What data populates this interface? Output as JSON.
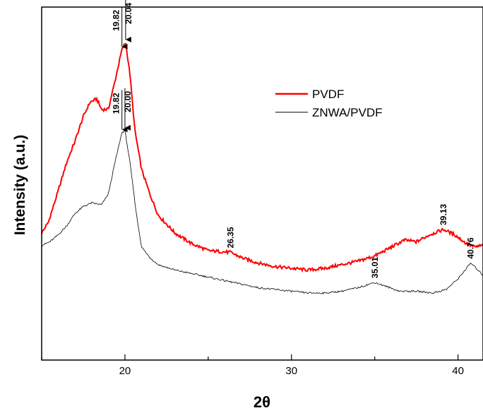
{
  "chart_data": {
    "type": "line",
    "xlabel": "2θ",
    "ylabel": "Intensity (a.u.)",
    "xlim": [
      15,
      41.5
    ],
    "ylim": [
      0,
      10
    ],
    "xticks": [
      20,
      30,
      40
    ],
    "yticks_shown": false,
    "grid": false,
    "legend_position": "top-right",
    "series": [
      {
        "name": "PVDF",
        "color": "#ff0000",
        "points": [
          [
            15.0,
            3.6
          ],
          [
            15.4,
            3.9
          ],
          [
            16.0,
            4.8
          ],
          [
            16.5,
            5.6
          ],
          [
            17.0,
            6.2
          ],
          [
            17.5,
            6.9
          ],
          [
            17.9,
            7.3
          ],
          [
            18.3,
            7.4
          ],
          [
            18.6,
            7.1
          ],
          [
            19.0,
            7.1
          ],
          [
            19.4,
            7.9
          ],
          [
            19.82,
            8.8
          ],
          [
            20.04,
            9.0
          ],
          [
            20.3,
            8.1
          ],
          [
            20.6,
            6.5
          ],
          [
            21.0,
            5.4
          ],
          [
            21.5,
            4.7
          ],
          [
            22.0,
            4.1
          ],
          [
            23.0,
            3.6
          ],
          [
            24.0,
            3.3
          ],
          [
            25.0,
            3.1
          ],
          [
            26.35,
            3.05
          ],
          [
            27.0,
            2.9
          ],
          [
            28.0,
            2.75
          ],
          [
            29.0,
            2.65
          ],
          [
            30.0,
            2.6
          ],
          [
            31.0,
            2.55
          ],
          [
            32.0,
            2.6
          ],
          [
            33.0,
            2.7
          ],
          [
            34.0,
            2.8
          ],
          [
            35.0,
            2.95
          ],
          [
            36.0,
            3.2
          ],
          [
            36.8,
            3.4
          ],
          [
            37.5,
            3.35
          ],
          [
            38.3,
            3.55
          ],
          [
            39.13,
            3.7
          ],
          [
            39.8,
            3.55
          ],
          [
            40.5,
            3.3
          ],
          [
            41.0,
            3.2
          ],
          [
            41.5,
            3.25
          ]
        ]
      },
      {
        "name": "ZNWA/PVDF",
        "color": "#000000",
        "points": [
          [
            15.0,
            3.25
          ],
          [
            15.5,
            3.35
          ],
          [
            16.0,
            3.55
          ],
          [
            16.5,
            3.8
          ],
          [
            17.0,
            4.15
          ],
          [
            17.5,
            4.35
          ],
          [
            18.0,
            4.45
          ],
          [
            18.6,
            4.4
          ],
          [
            19.0,
            4.7
          ],
          [
            19.4,
            5.6
          ],
          [
            19.82,
            6.45
          ],
          [
            20.0,
            6.5
          ],
          [
            20.3,
            5.6
          ],
          [
            20.7,
            4.1
          ],
          [
            21.0,
            3.2
          ],
          [
            21.5,
            2.9
          ],
          [
            22.0,
            2.7
          ],
          [
            23.0,
            2.55
          ],
          [
            24.0,
            2.45
          ],
          [
            25.0,
            2.35
          ],
          [
            26.0,
            2.25
          ],
          [
            27.0,
            2.15
          ],
          [
            28.0,
            2.05
          ],
          [
            29.0,
            2.0
          ],
          [
            30.0,
            1.95
          ],
          [
            31.0,
            1.9
          ],
          [
            32.0,
            1.9
          ],
          [
            33.0,
            1.95
          ],
          [
            34.0,
            2.05
          ],
          [
            35.0,
            2.2
          ],
          [
            35.6,
            2.1
          ],
          [
            36.5,
            1.95
          ],
          [
            37.5,
            1.95
          ],
          [
            38.5,
            1.9
          ],
          [
            39.3,
            2.0
          ],
          [
            40.0,
            2.3
          ],
          [
            40.76,
            2.75
          ],
          [
            41.2,
            2.55
          ],
          [
            41.5,
            2.4
          ]
        ]
      }
    ],
    "annotations": [
      {
        "text": "19.82",
        "x": 19.82,
        "series": 0,
        "arrow": true
      },
      {
        "text": "20.04",
        "x": 20.04,
        "series": 0,
        "arrow": true
      },
      {
        "text": "19.82",
        "x": 19.82,
        "series": 1,
        "arrow": true
      },
      {
        "text": "20.00",
        "x": 20.0,
        "series": 1,
        "arrow": true
      },
      {
        "text": "26.35",
        "x": 26.35,
        "series": 0,
        "arrow": false
      },
      {
        "text": "39.13",
        "x": 39.13,
        "series": 0,
        "arrow": false
      },
      {
        "text": "35.01",
        "x": 35.01,
        "series": 1,
        "arrow": false
      },
      {
        "text": "40.76",
        "x": 40.76,
        "series": 1,
        "arrow": false
      }
    ]
  }
}
